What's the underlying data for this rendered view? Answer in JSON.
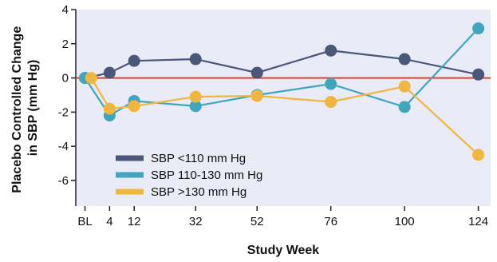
{
  "chart_data": {
    "type": "line",
    "xlabel": "Study Week",
    "ylabel_lines": [
      "Placebo Controlled Change",
      "in SBP (mm Hg)"
    ],
    "x_ticks": [
      {
        "label": "BL",
        "week": -4
      },
      {
        "label": "4",
        "week": 4
      },
      {
        "label": "12",
        "week": 12
      },
      {
        "label": "32",
        "week": 32
      },
      {
        "label": "52",
        "week": 52
      },
      {
        "label": "76",
        "week": 76
      },
      {
        "label": "100",
        "week": 100
      },
      {
        "label": "124",
        "week": 124
      }
    ],
    "y_ticks": [
      4,
      2,
      0,
      -2,
      -4,
      -6
    ],
    "ylim": [
      -7.5,
      4
    ],
    "xlim": [
      -7,
      128
    ],
    "reference_line": {
      "y": 0,
      "color": "#e0442a"
    },
    "grid": false,
    "legend_position": "bottom-left",
    "series": [
      {
        "name": "SBP <110 mm Hg",
        "color": "#4a5779",
        "x": [
          -4,
          4,
          12,
          32,
          52,
          76,
          100,
          124
        ],
        "y": [
          0,
          0.3,
          1.0,
          1.1,
          0.3,
          1.6,
          1.1,
          0.2
        ]
      },
      {
        "name": "SBP 110-130 mm Hg",
        "color": "#3fa6be",
        "x": [
          -4,
          4,
          12,
          32,
          52,
          76,
          100,
          124
        ],
        "y": [
          0,
          -2.2,
          -1.35,
          -1.65,
          -1.0,
          -0.35,
          -1.7,
          2.9
        ]
      },
      {
        "name": "SBP >130 mm Hg",
        "color": "#f0b63e",
        "x": [
          -2,
          4,
          12,
          32,
          52,
          76,
          100,
          124
        ],
        "y": [
          0,
          -1.8,
          -1.65,
          -1.1,
          -1.05,
          -1.4,
          -0.5,
          -4.5
        ]
      }
    ],
    "colors": {
      "plot_background": "#e9ebf7",
      "axis": "#222222"
    }
  }
}
